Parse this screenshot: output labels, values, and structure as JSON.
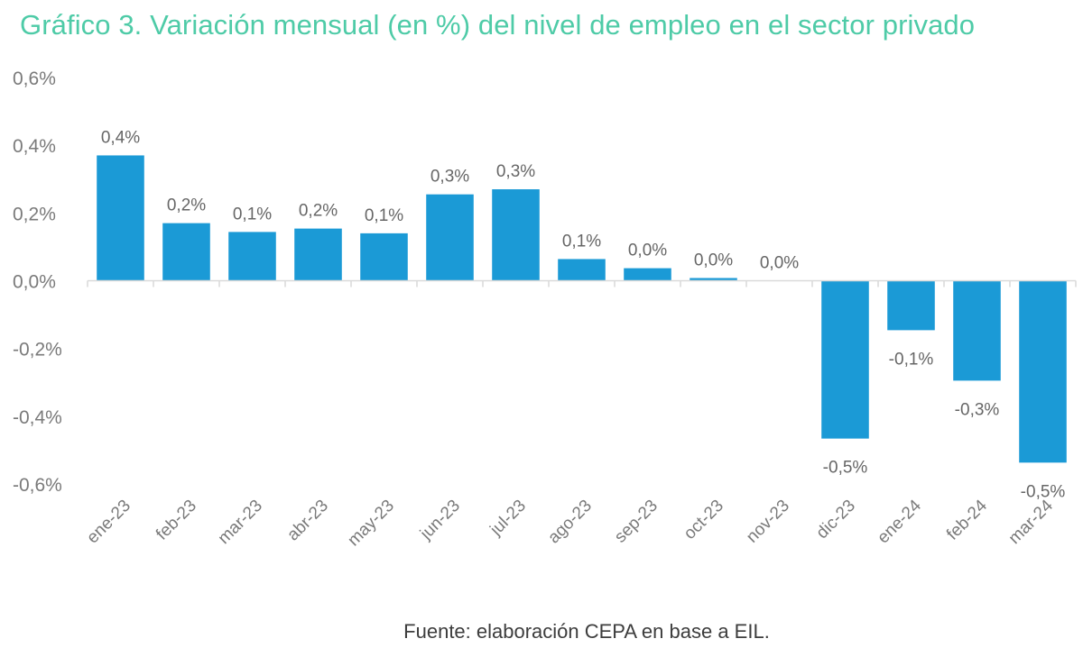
{
  "chart_data": {
    "type": "bar",
    "title": "Gráfico 3. Variación mensual (en %) del nivel de empleo en el sector privado",
    "xlabel": "",
    "ylabel": "",
    "categories": [
      "ene-23",
      "feb-23",
      "mar-23",
      "abr-23",
      "may-23",
      "jun-23",
      "jul-23",
      "ago-23",
      "sep-23",
      "oct-23",
      "nov-23",
      "dic-23",
      "ene-24",
      "feb-24",
      "mar-24"
    ],
    "values": [
      0.37,
      0.17,
      0.144,
      0.154,
      0.14,
      0.255,
      0.27,
      0.064,
      0.037,
      0.008,
      0.0,
      -0.466,
      -0.146,
      -0.295,
      -0.537
    ],
    "data_labels": [
      "0,4%",
      "0,2%",
      "0,1%",
      "0,2%",
      "0,1%",
      "0,3%",
      "0,3%",
      "0,1%",
      "0,0%",
      "0,0%",
      "0,0%",
      "-0,5%",
      "-0,1%",
      "-0,3%",
      "-0,5%"
    ],
    "ylim": [
      -0.6,
      0.6
    ],
    "yticks": [
      0.6,
      0.4,
      0.2,
      0.0,
      -0.2,
      -0.4,
      -0.6
    ],
    "ytick_labels": [
      "0,6%",
      "0,4%",
      "0,2%",
      "0,0%",
      "-0,2%",
      "-0,4%",
      "-0,6%"
    ],
    "grid": false,
    "legend": "none",
    "bar_color": "#1b9ad6",
    "source": "Fuente: elaboración CEPA en base a EIL."
  },
  "colors": {
    "title": "#4ecba7",
    "bar": "#1b9ad6",
    "axis": "#d9d9d9",
    "text": "#7a7a7a"
  }
}
